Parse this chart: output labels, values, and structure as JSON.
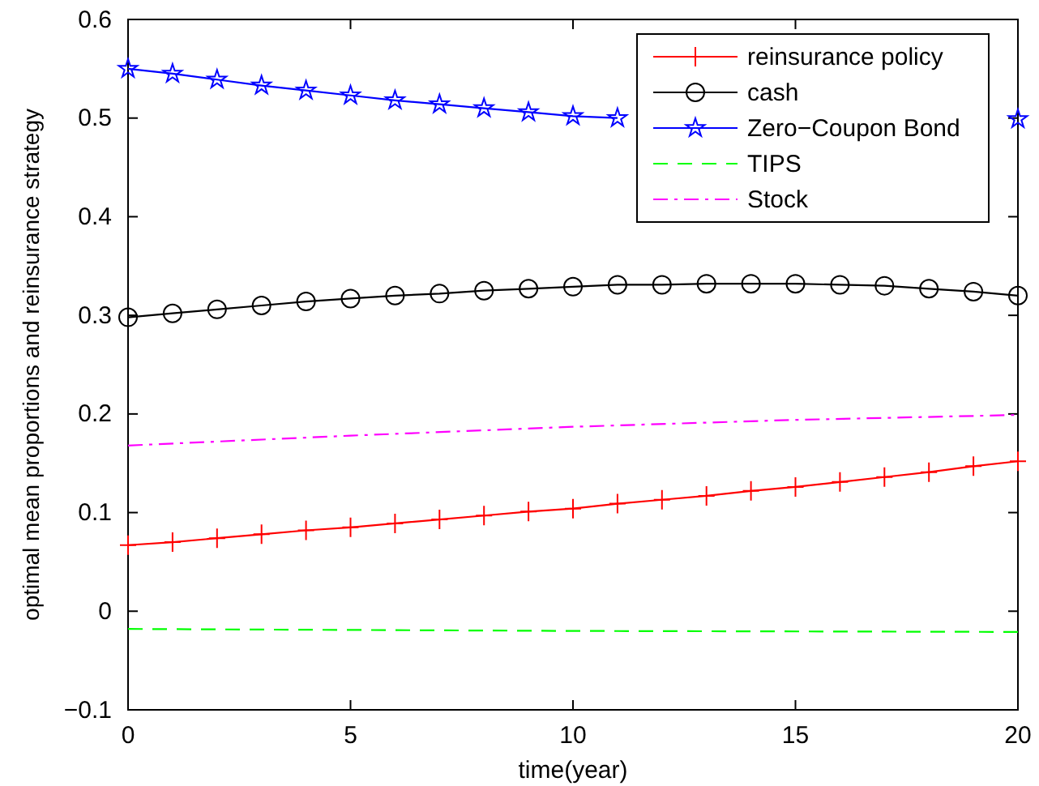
{
  "chart_data": {
    "type": "line",
    "xlabel": "time(year)",
    "ylabel": "optimal mean proportions and reinsurance strategy",
    "x": [
      0,
      1,
      2,
      3,
      4,
      5,
      6,
      7,
      8,
      9,
      10,
      11,
      12,
      13,
      14,
      15,
      16,
      17,
      18,
      19,
      20
    ],
    "xlim": [
      0,
      20
    ],
    "xticks": [
      0,
      5,
      10,
      15,
      20
    ],
    "ylim": [
      -0.1,
      0.6
    ],
    "yticks": [
      {
        "value": -0.1,
        "label": "−0.1"
      },
      0,
      0.1,
      0.2,
      0.3,
      0.4,
      0.5,
      0.6
    ],
    "grid": false,
    "legend": "top right",
    "series": [
      {
        "name": "reinsurance policy",
        "color": "#ff0000",
        "marker": "cross",
        "line_style": "solid",
        "values": [
          0.067,
          0.07,
          0.074,
          0.078,
          0.082,
          0.085,
          0.089,
          0.093,
          0.097,
          0.101,
          0.104,
          0.109,
          0.113,
          0.117,
          0.122,
          0.126,
          0.131,
          0.136,
          0.141,
          0.147,
          0.152
        ]
      },
      {
        "name": "cash",
        "color": "#000000",
        "marker": "circle",
        "line_style": "solid",
        "values": [
          0.298,
          0.302,
          0.306,
          0.31,
          0.314,
          0.317,
          0.32,
          0.322,
          0.325,
          0.327,
          0.329,
          0.331,
          0.331,
          0.332,
          0.332,
          0.332,
          0.331,
          0.33,
          0.327,
          0.324,
          0.32
        ]
      },
      {
        "name": "Zero−Coupon Bond",
        "color": "#0000ff",
        "marker": "star",
        "line_style": "solid",
        "values": [
          0.55,
          0.545,
          0.539,
          0.533,
          0.528,
          0.523,
          0.518,
          0.514,
          0.51,
          0.506,
          0.502,
          0.5,
          null,
          null,
          null,
          null,
          null,
          null,
          null,
          null,
          0.499
        ]
      },
      {
        "name": "TIPS",
        "color": "#00ff00",
        "marker": "none",
        "line_style": "dashed",
        "x": [
          0,
          10,
          20
        ],
        "values": [
          -0.018,
          -0.02,
          -0.021
        ]
      },
      {
        "name": "Stock",
        "color": "#ff00ff",
        "marker": "none",
        "line_style": "dashdot",
        "x": [
          0,
          5,
          10,
          15,
          20
        ],
        "values": [
          0.168,
          0.178,
          0.187,
          0.194,
          0.199
        ]
      }
    ]
  }
}
